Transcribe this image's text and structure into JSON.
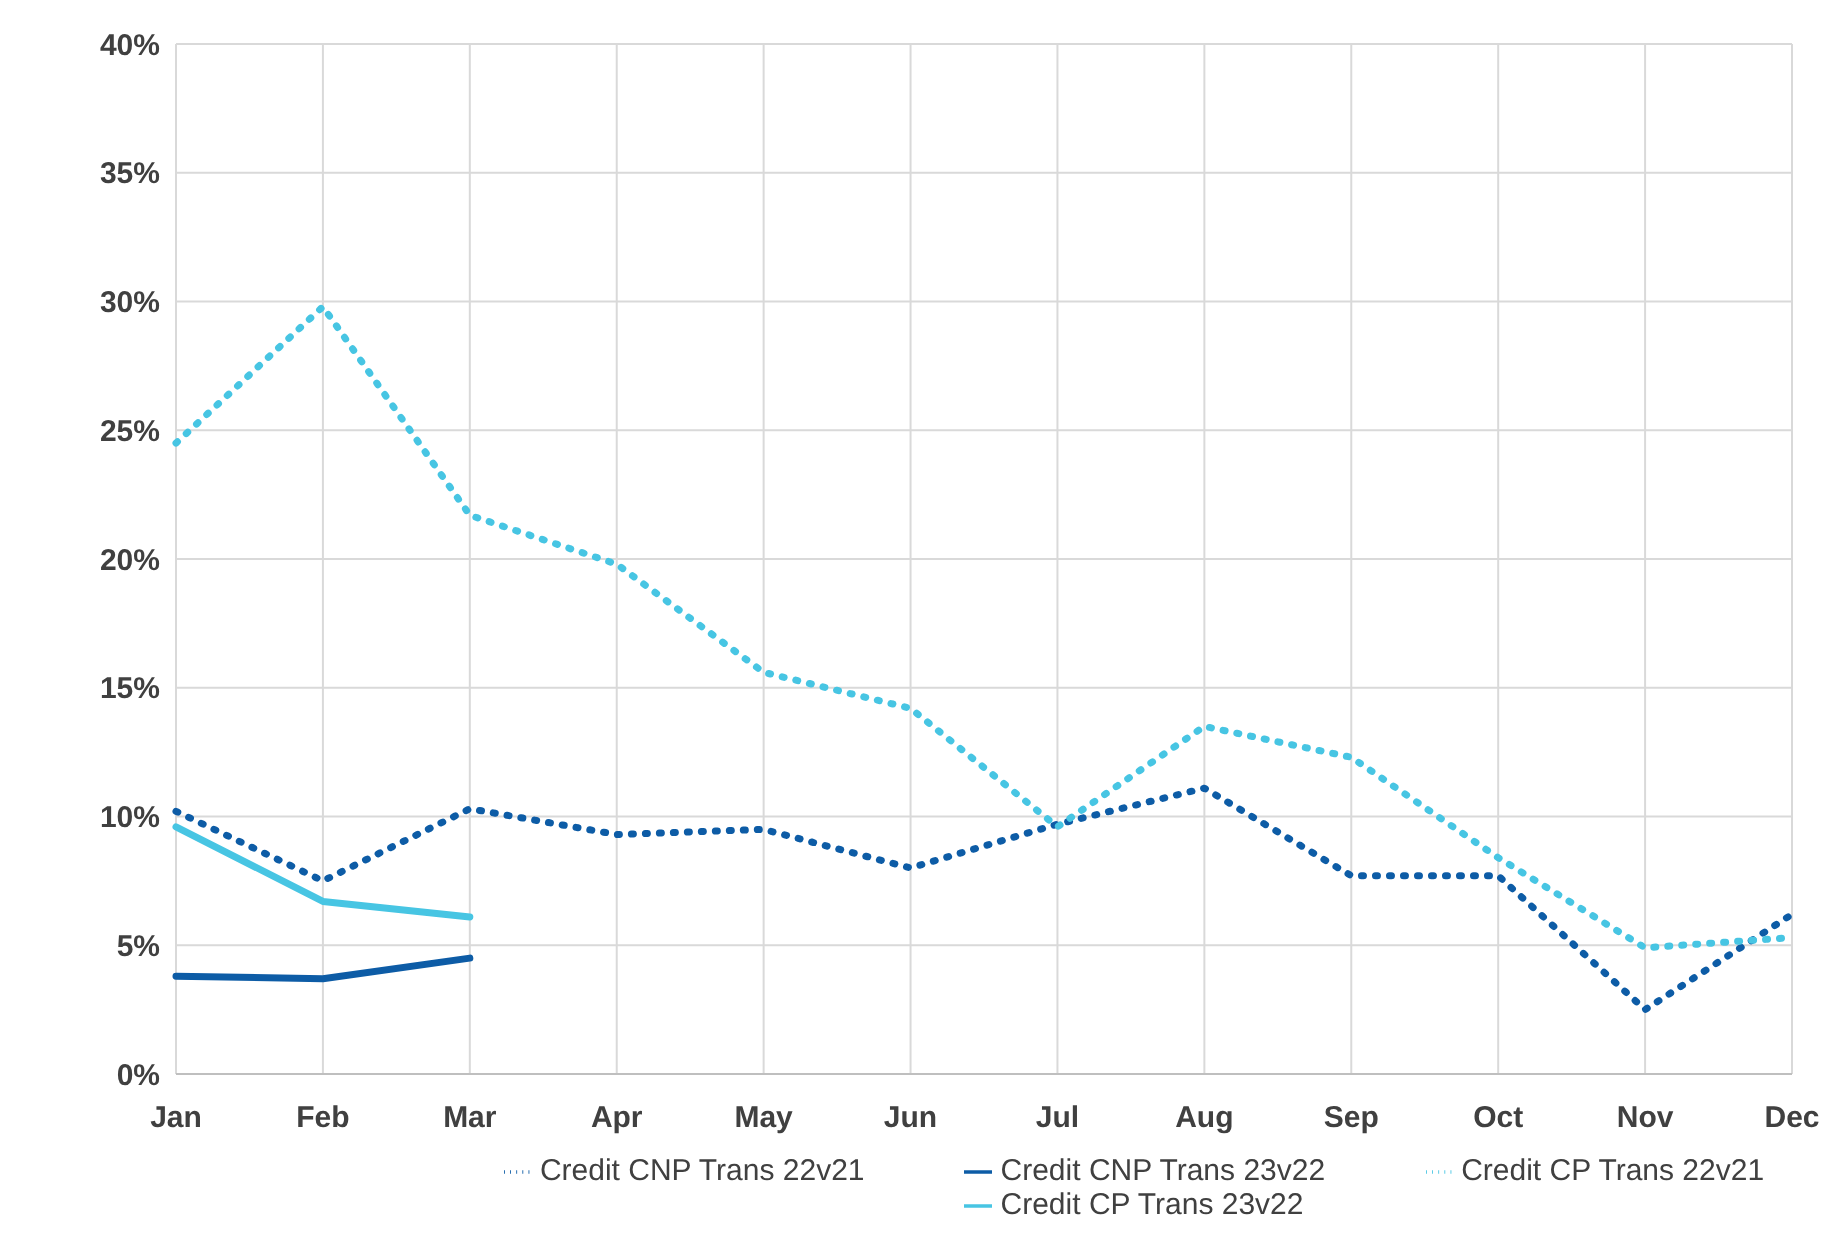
{
  "chart_data": {
    "type": "line",
    "categories": [
      "Jan",
      "Feb",
      "Mar",
      "Apr",
      "May",
      "Jun",
      "Jul",
      "Aug",
      "Sep",
      "Oct",
      "Nov",
      "Dec"
    ],
    "ylim": [
      0,
      40
    ],
    "yticks": [
      {
        "value": 0,
        "label": "0%"
      },
      {
        "value": 5,
        "label": "5%"
      },
      {
        "value": 10,
        "label": "10%"
      },
      {
        "value": 15,
        "label": "15%"
      },
      {
        "value": 20,
        "label": "20%"
      },
      {
        "value": 25,
        "label": "25%"
      },
      {
        "value": 30,
        "label": "30%"
      },
      {
        "value": 35,
        "label": "35%"
      },
      {
        "value": 40,
        "label": "40%"
      }
    ],
    "grid": true,
    "legend": "bottom",
    "marker": "none",
    "series": [
      {
        "name": "Credit CNP Trans 23v22",
        "color": "#0d5ca6",
        "line_style": "solid",
        "values": [
          3.8,
          3.7,
          4.5,
          null,
          null,
          null,
          null,
          null,
          null,
          null,
          null,
          null
        ]
      },
      {
        "name": "Credit CP Trans 23v22",
        "color": "#47c5e3",
        "line_style": "solid",
        "values": [
          9.6,
          6.7,
          6.1,
          null,
          null,
          null,
          null,
          null,
          null,
          null,
          null,
          null
        ]
      },
      {
        "name": "Credit CNP Trans 22v21",
        "color": "#0d5ca6",
        "line_style": "dotted",
        "values": [
          10.2,
          7.5,
          10.3,
          9.3,
          9.5,
          8.0,
          9.7,
          11.1,
          7.7,
          7.7,
          2.5,
          6.2
        ]
      },
      {
        "name": "Credit CP Trans 22v21",
        "color": "#47c5e3",
        "line_style": "dotted",
        "values": [
          24.5,
          29.8,
          21.7,
          19.8,
          15.6,
          14.2,
          9.6,
          13.5,
          12.3,
          8.4,
          4.9,
          5.3
        ]
      }
    ]
  }
}
